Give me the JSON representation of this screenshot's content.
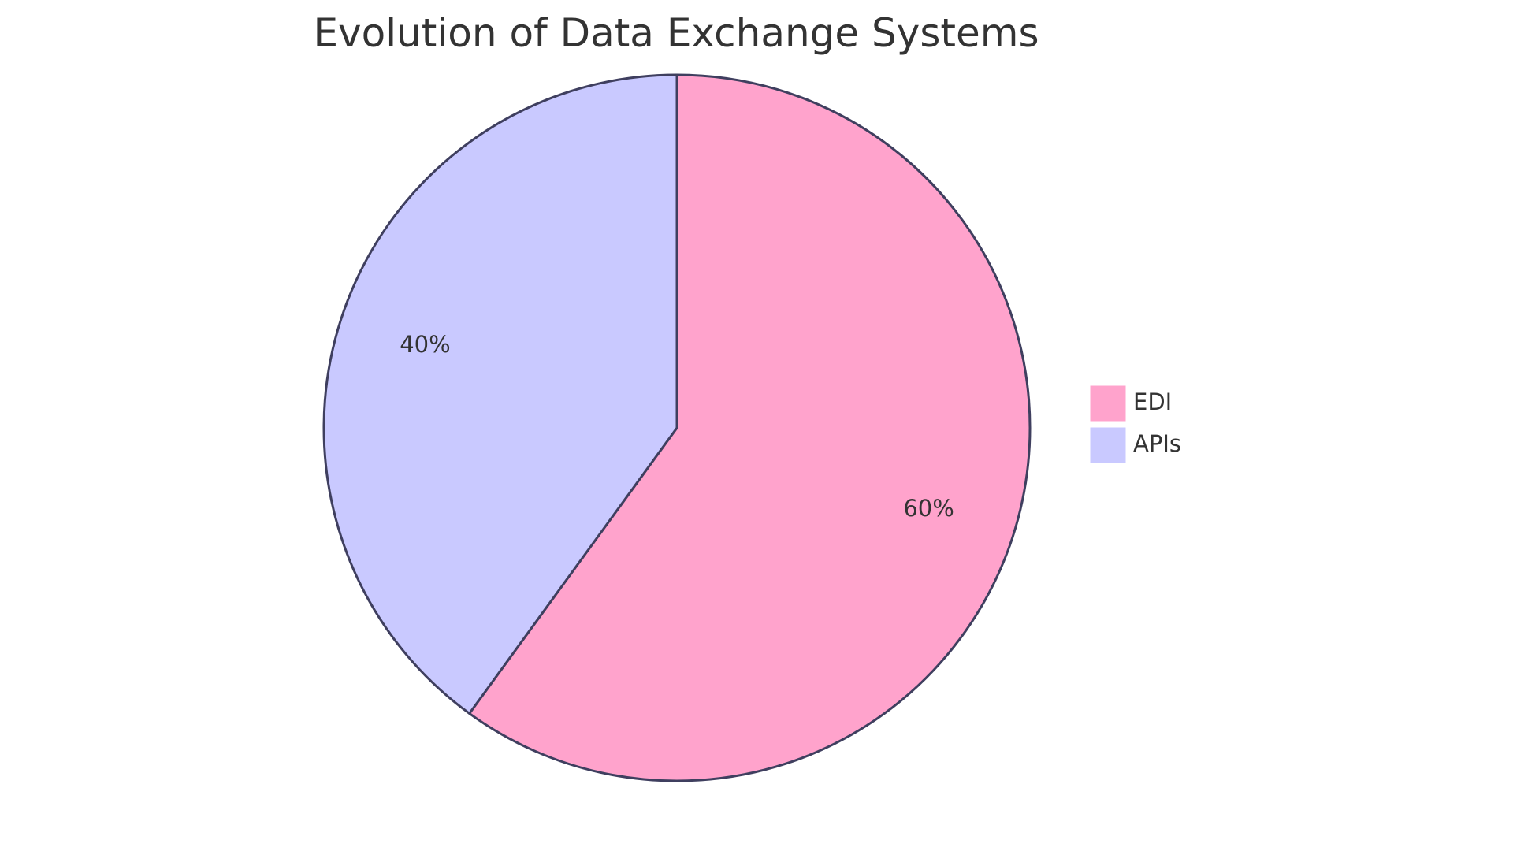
{
  "chart_data": {
    "type": "pie",
    "title": "Evolution of Data Exchange Systems",
    "slices": [
      {
        "name": "EDI",
        "value": 60,
        "label": "60%",
        "color": "#FFA3CC"
      },
      {
        "name": "APIs",
        "value": 40,
        "label": "40%",
        "color": "#C9C9FF"
      }
    ],
    "start_angle": "12 o'clock",
    "direction": "clockwise",
    "stroke_color": "#3F3F5F",
    "legend": {
      "placement": "right",
      "entries": [
        "EDI",
        "APIs"
      ]
    }
  }
}
